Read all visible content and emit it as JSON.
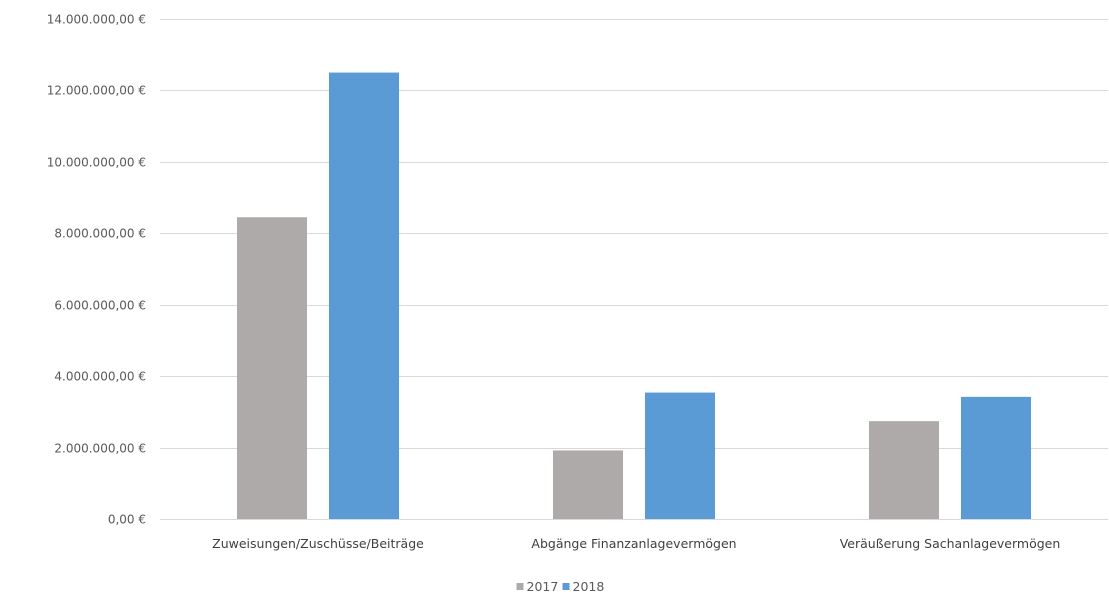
{
  "chart_data": {
    "type": "bar",
    "title": "",
    "xlabel": "",
    "ylabel": "",
    "categories": [
      "Zuweisungen/Zuschüsse/Beiträge",
      "Abgänge Finanzanlagevermögen",
      "Veräußerung Sachanlagevermögen"
    ],
    "series": [
      {
        "name": "2017",
        "color": "#aeaaaa",
        "values": [
          8450000,
          1920000,
          2740000
        ]
      },
      {
        "name": "2018",
        "color": "#5b9bd5",
        "values": [
          12500000,
          3540000,
          3420000
        ]
      }
    ],
    "ylim": [
      0,
      14000000
    ],
    "yticks": [
      0,
      2000000,
      4000000,
      6000000,
      8000000,
      10000000,
      12000000,
      14000000
    ],
    "ytick_labels": [
      "0,00 €",
      "2.000.000,00 €",
      "4.000.000,00 €",
      "6.000.000,00 €",
      "8.000.000,00 €",
      "10.000.000,00 €",
      "12.000.000,00 €",
      "14.000.000,00 €"
    ],
    "grid": true,
    "legend_position": "bottom-center"
  }
}
